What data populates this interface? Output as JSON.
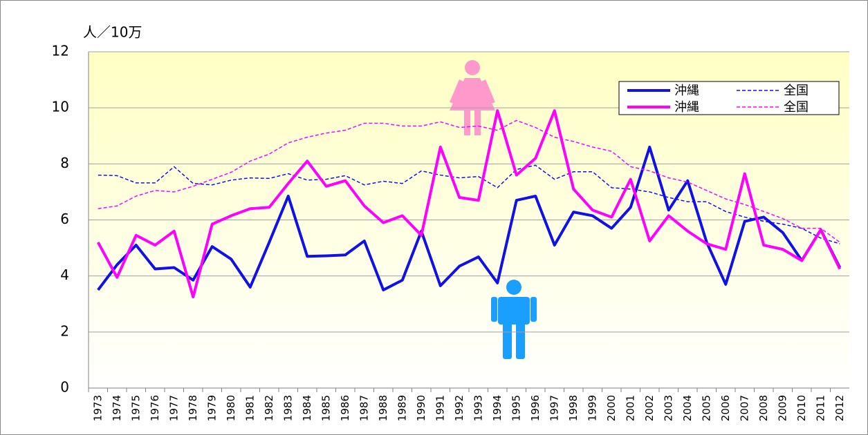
{
  "chart_data": {
    "type": "line",
    "y_label": "人／10万",
    "categories": [
      "1973",
      "1974",
      "1975",
      "1976",
      "1977",
      "1978",
      "1979",
      "1980",
      "1981",
      "1982",
      "1983",
      "1984",
      "1985",
      "1986",
      "1987",
      "1988",
      "1989",
      "1990",
      "1991",
      "1992",
      "1993",
      "1994",
      "1995",
      "1996",
      "1997",
      "1998",
      "1999",
      "2000",
      "2001",
      "2002",
      "2003",
      "2004",
      "2005",
      "2006",
      "2007",
      "2008",
      "2009",
      "2010",
      "2011",
      "2012"
    ],
    "series": [
      {
        "name": "沖縄",
        "color": "#1010e8",
        "dashed": false,
        "values": [
          3.5,
          4.4,
          5.1,
          4.25,
          4.3,
          3.85,
          5.05,
          4.6,
          3.6,
          5.2,
          6.85,
          4.7,
          4.72,
          4.75,
          5.25,
          3.5,
          3.85,
          5.6,
          3.65,
          4.35,
          4.68,
          3.75,
          6.7,
          6.85,
          5.1,
          6.28,
          6.15,
          5.7,
          6.45,
          8.6,
          6.35,
          7.4,
          5.2,
          3.7,
          5.95,
          6.1,
          5.55,
          4.55,
          5.65,
          4.3
        ]
      },
      {
        "name": "全国",
        "color": "#1010e8",
        "dashed": true,
        "values": [
          7.6,
          7.58,
          7.32,
          7.32,
          7.9,
          7.3,
          7.25,
          7.42,
          7.5,
          7.48,
          7.65,
          7.42,
          7.45,
          7.58,
          7.25,
          7.38,
          7.3,
          7.75,
          7.6,
          7.5,
          7.55,
          7.15,
          7.8,
          7.95,
          7.45,
          7.72,
          7.72,
          7.15,
          7.1,
          7.0,
          6.8,
          6.65,
          6.65,
          6.3,
          6.1,
          5.95,
          5.85,
          5.7,
          5.35,
          5.15
        ]
      },
      {
        "name": "沖縄",
        "color": "#ff00ff",
        "dashed": false,
        "values": [
          5.2,
          3.95,
          5.45,
          5.1,
          5.6,
          3.25,
          5.85,
          6.15,
          6.4,
          6.45,
          7.3,
          8.1,
          7.2,
          7.4,
          6.5,
          5.9,
          6.15,
          5.45,
          8.6,
          6.8,
          6.7,
          9.9,
          7.6,
          8.2,
          9.9,
          7.1,
          6.35,
          6.1,
          7.45,
          5.25,
          6.15,
          5.6,
          5.15,
          4.95,
          7.65,
          5.1,
          4.95,
          4.55,
          5.65,
          4.25
        ]
      },
      {
        "name": "全国",
        "color": "#ff00ff",
        "dashed": true,
        "values": [
          6.4,
          6.5,
          6.85,
          7.05,
          7.0,
          7.2,
          7.45,
          7.7,
          8.1,
          8.35,
          8.75,
          8.95,
          9.1,
          9.2,
          9.45,
          9.45,
          9.35,
          9.35,
          9.5,
          9.3,
          9.35,
          9.2,
          9.55,
          9.3,
          8.95,
          8.8,
          8.6,
          8.45,
          7.9,
          7.75,
          7.5,
          7.35,
          7.05,
          6.75,
          6.55,
          6.3,
          6.05,
          5.7,
          5.7,
          5.2
        ]
      }
    ],
    "ylim": [
      0,
      12
    ],
    "yticks": [
      0,
      2,
      4,
      6,
      8,
      10,
      12
    ],
    "grid": true,
    "legend": "top-right"
  }
}
